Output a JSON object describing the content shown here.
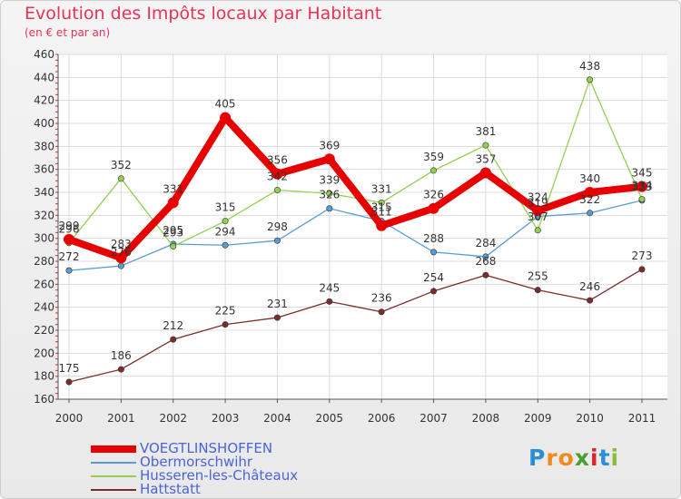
{
  "title": "Evolution des Impôts locaux par Habitant",
  "subtitle": "(en € et par an)",
  "logo": {
    "letters": [
      "P",
      "r",
      "o",
      "x",
      "i",
      "t",
      "i"
    ],
    "colors": [
      "#2a8fd6",
      "#f08a1c",
      "#f08a1c",
      "#4a9e2e",
      "#d9262b",
      "#2a8fd6",
      "#8bbd3a"
    ]
  },
  "chart_data": {
    "type": "line",
    "x": [
      "2000",
      "2001",
      "2002",
      "2003",
      "2004",
      "2005",
      "2006",
      "2007",
      "2008",
      "2009",
      "2010",
      "2011"
    ],
    "ylim": [
      160,
      460
    ],
    "yticks": [
      160,
      180,
      200,
      220,
      240,
      260,
      280,
      300,
      320,
      340,
      360,
      380,
      400,
      420,
      440,
      460
    ],
    "grid": true,
    "legend_position": "bottom-left",
    "series": [
      {
        "name": "VOEGTLINSHOFFEN",
        "color": "#e60000",
        "values": [
          299,
          283,
          331,
          405,
          356,
          369,
          311,
          326,
          357,
          324,
          340,
          345
        ],
        "labels": [
          "299",
          "283",
          "331",
          "405",
          "356",
          "369",
          "311",
          "326",
          "357",
          "324",
          "340",
          "345"
        ],
        "emphasis": true
      },
      {
        "name": "Obermorschwihr",
        "color": "#5b9bd5",
        "values": [
          272,
          276,
          295,
          294,
          298,
          326,
          315,
          288,
          284,
          319,
          322,
          333
        ],
        "labels": [
          "272",
          "276",
          "295",
          "294",
          "298",
          "326",
          "315",
          "288",
          "284",
          "319",
          "322",
          "333"
        ]
      },
      {
        "name": "Husseren-les-Châteaux",
        "color": "#92d050",
        "values": [
          296,
          352,
          293,
          315,
          342,
          339,
          331,
          359,
          381,
          307,
          438,
          334
        ],
        "labels": [
          "296",
          "352",
          "293",
          "315",
          "342",
          "339",
          "331",
          "359",
          "381",
          "307",
          "438",
          "334"
        ]
      },
      {
        "name": "Hattstatt",
        "color": "#7b2c2c",
        "values": [
          175,
          186,
          212,
          225,
          231,
          245,
          236,
          254,
          268,
          255,
          246,
          273
        ],
        "labels": [
          "175",
          "186",
          "212",
          "225",
          "231",
          "245",
          "236",
          "254",
          "268",
          "255",
          "246",
          "273"
        ]
      }
    ]
  }
}
